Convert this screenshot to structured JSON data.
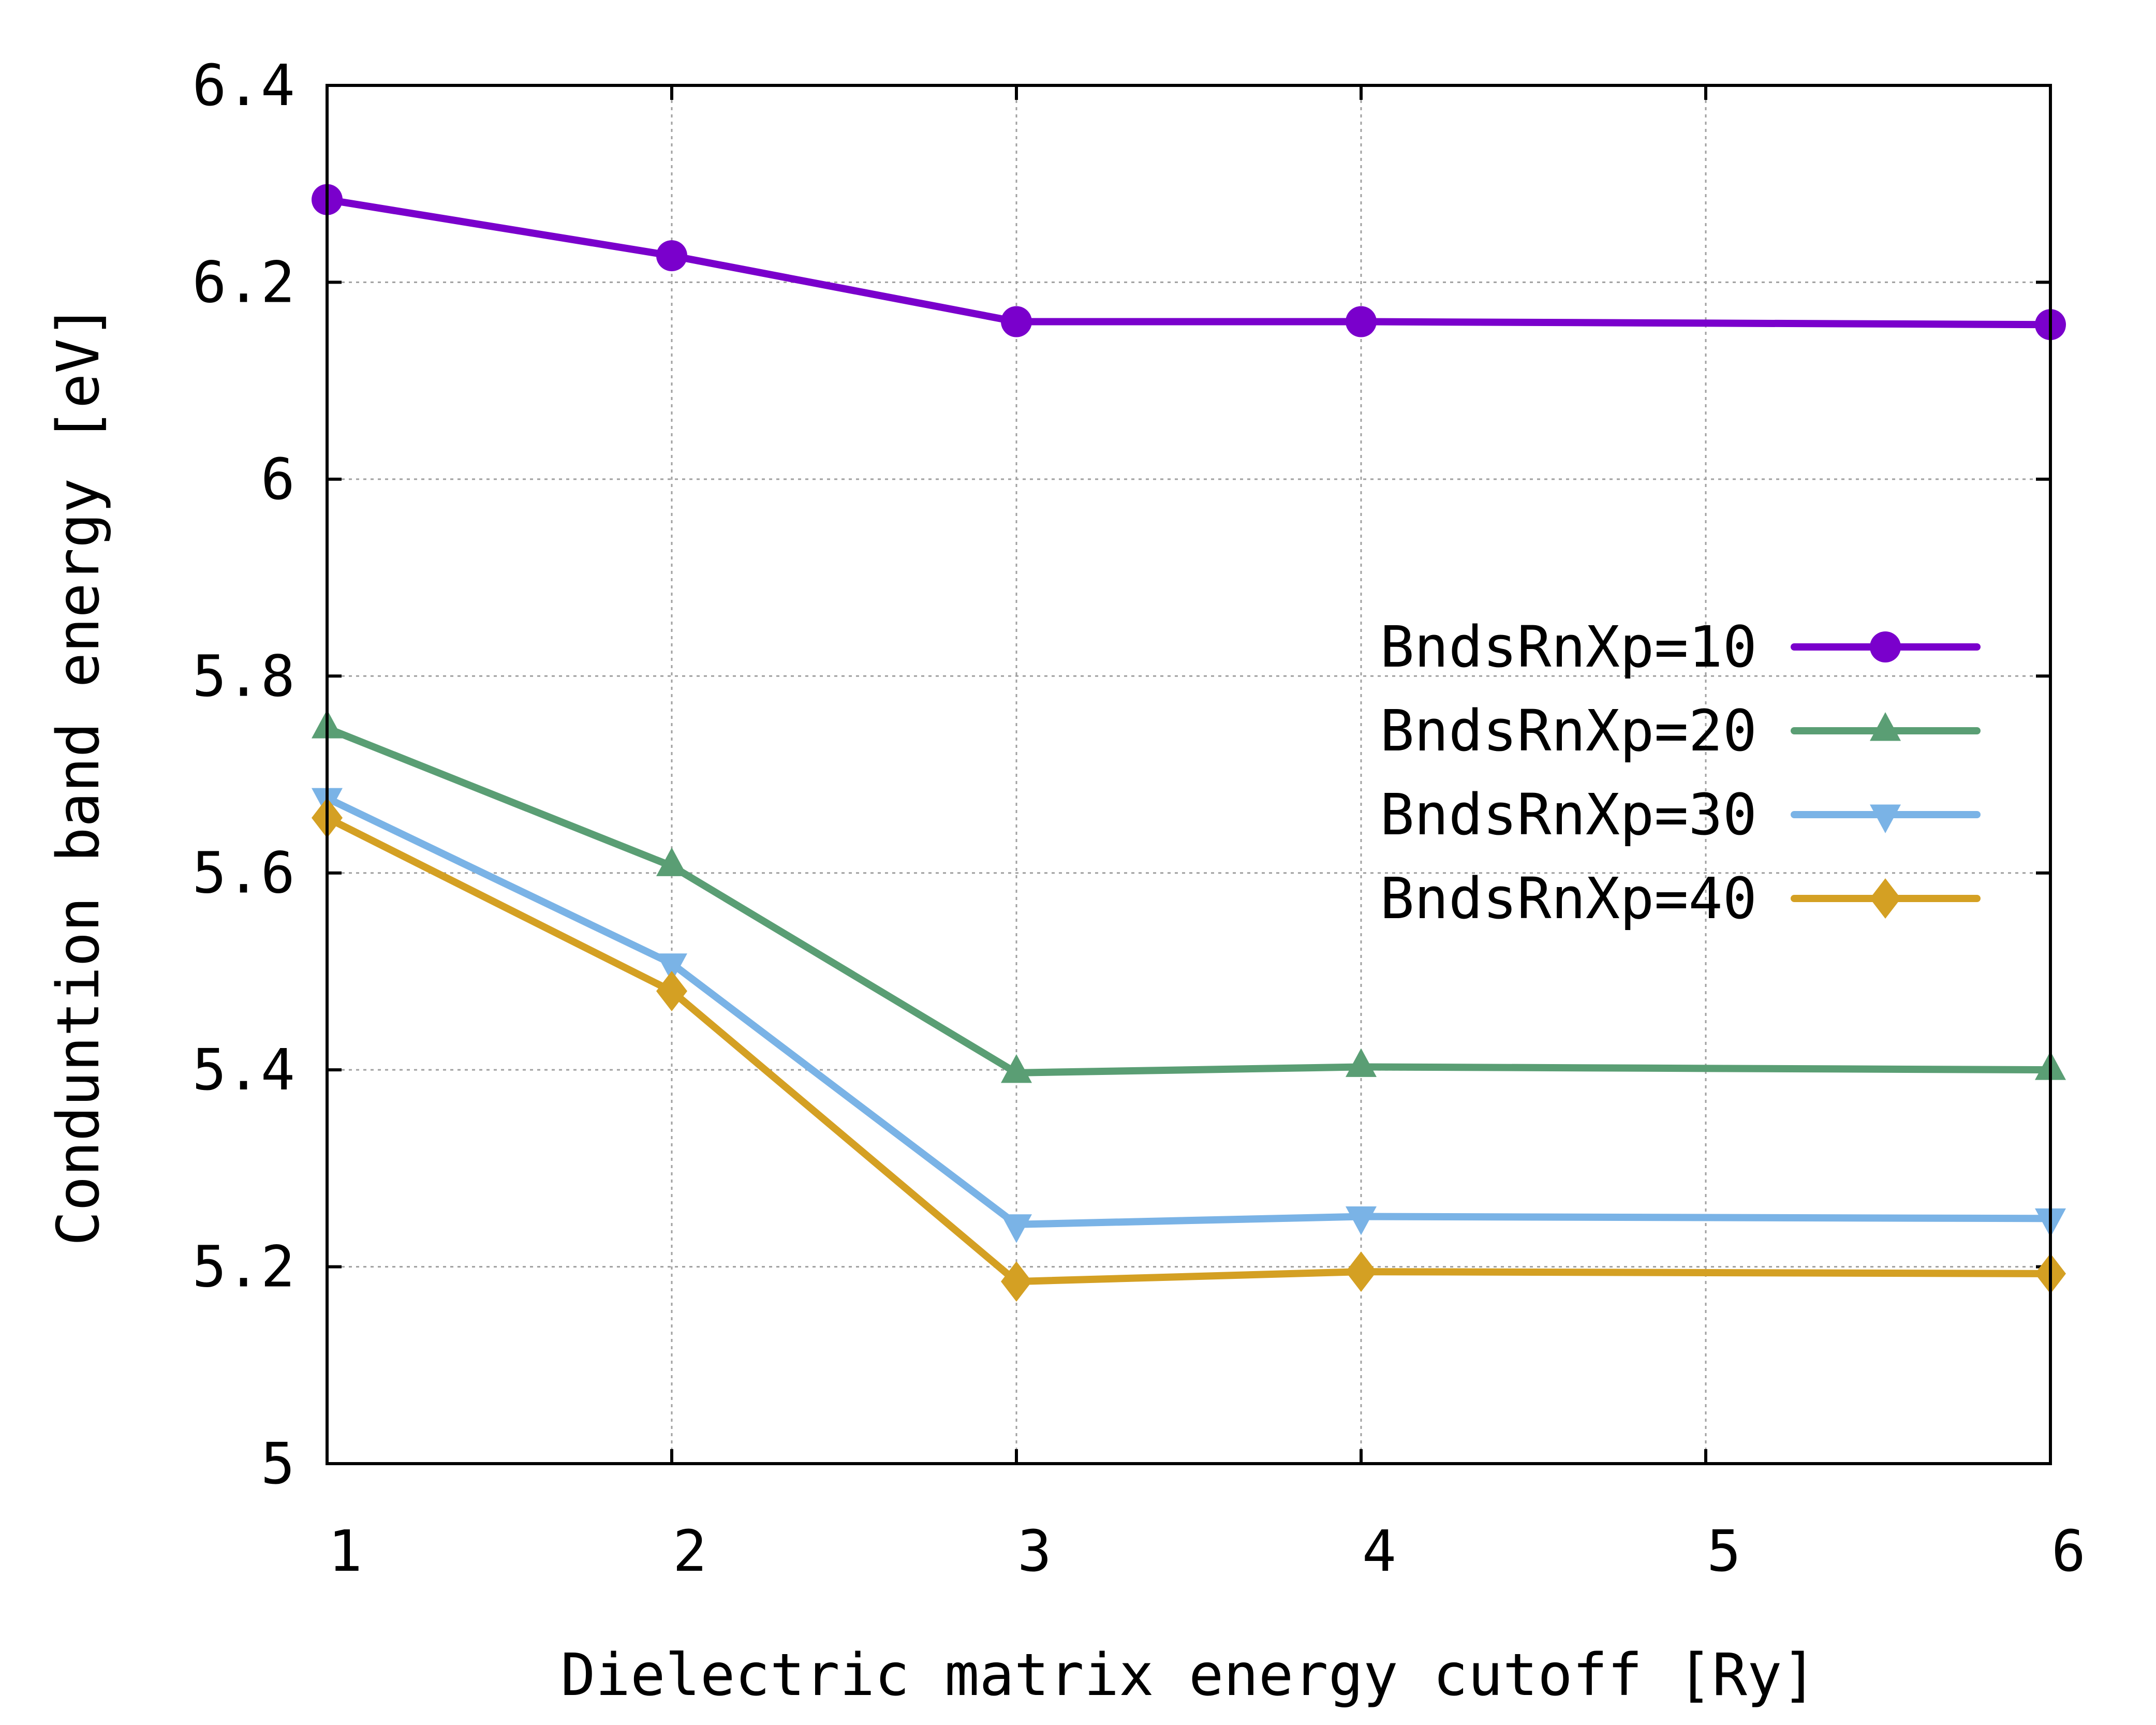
{
  "chart_data": {
    "type": "line",
    "title": "",
    "xlabel": "Dielectric matrix energy cutoff [Ry]",
    "ylabel": "Conduntion band energy [eV]",
    "xlim": [
      1,
      6
    ],
    "ylim": [
      5,
      6.4
    ],
    "x_ticks": [
      1,
      2,
      3,
      4,
      5,
      6
    ],
    "x_tick_labels": [
      "1",
      "2",
      "3",
      "4",
      "5",
      "6"
    ],
    "y_ticks": [
      5,
      5.2,
      5.4,
      5.6,
      5.8,
      6,
      6.2,
      6.4
    ],
    "y_tick_labels": [
      "5",
      "5.2",
      "5.4",
      "5.6",
      "5.8",
      "6",
      "6.2",
      "6.4"
    ],
    "grid": true,
    "legend_position": "center-right",
    "x": [
      1,
      2,
      3,
      4,
      6
    ],
    "series": [
      {
        "name": "BndsRnXp=10",
        "color": "#7a00cc",
        "marker": "circle",
        "values": [
          6.284,
          6.227,
          6.16,
          6.16,
          6.157
        ]
      },
      {
        "name": "BndsRnXp=20",
        "color": "#5a9e74",
        "marker": "triangle-up",
        "values": [
          5.747,
          5.607,
          5.397,
          5.403,
          5.4
        ]
      },
      {
        "name": "BndsRnXp=30",
        "color": "#7ab3e6",
        "marker": "triangle-down",
        "values": [
          5.676,
          5.508,
          5.243,
          5.251,
          5.249
        ]
      },
      {
        "name": "BndsRnXp=40",
        "color": "#d4a023",
        "marker": "diamond",
        "values": [
          5.656,
          5.48,
          5.185,
          5.195,
          5.193
        ]
      }
    ]
  }
}
